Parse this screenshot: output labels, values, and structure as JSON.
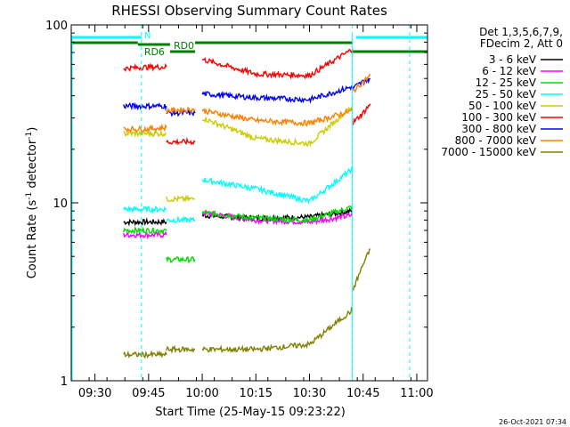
{
  "chart_data": {
    "type": "line",
    "title": "RHESSI Observing Summary Count Rates",
    "xlabel": "Start Time (25-May-15 09:23:22)",
    "ylabel_main": "Count Rate (s",
    "ylabel_sup1": "-1",
    "ylabel_mid": " detector",
    "ylabel_sup2": "-1",
    "ylabel_end": ")",
    "y_scale": "log",
    "ylim": [
      1,
      100
    ],
    "xlim": [
      "09:23:22",
      "11:03:00"
    ],
    "x_ticks": [
      "09:30",
      "09:45",
      "10:00",
      "10:15",
      "10:30",
      "10:45",
      "11:00"
    ],
    "y_ticks": [
      "1",
      "10",
      "100"
    ],
    "legend_header": [
      "Det 1,3,5,6,7,9,",
      "FDecim 2, Att 0"
    ],
    "legend_position": "top-right",
    "series": [
      {
        "name": "3 - 6 keV",
        "color": "#000000",
        "segments": [
          {
            "t": [
              "09:38",
              "09:45",
              "09:50"
            ],
            "v": [
              7.8,
              7.8,
              7.8
            ]
          },
          {
            "t": [
              "10:00",
              "10:15",
              "10:30",
              "10:42"
            ],
            "v": [
              8.5,
              8.2,
              8.3,
              9.0
            ]
          }
        ]
      },
      {
        "name": "6 - 12 keV",
        "color": "#ff00ff",
        "segments": [
          {
            "t": [
              "09:38",
              "09:45",
              "09:50"
            ],
            "v": [
              6.6,
              6.6,
              6.6
            ]
          },
          {
            "t": [
              "10:00",
              "10:15",
              "10:30",
              "10:42"
            ],
            "v": [
              8.8,
              8.0,
              7.8,
              8.5
            ]
          }
        ]
      },
      {
        "name": "12 - 25 keV",
        "color": "#00dd00",
        "segments": [
          {
            "t": [
              "09:38",
              "09:45",
              "09:50"
            ],
            "v": [
              7.0,
              7.0,
              7.0
            ]
          },
          {
            "t": [
              "09:50",
              "09:58"
            ],
            "v": [
              4.8,
              4.8
            ]
          },
          {
            "t": [
              "10:00",
              "10:15",
              "10:30",
              "10:42"
            ],
            "v": [
              8.8,
              8.2,
              8.0,
              9.5
            ]
          }
        ]
      },
      {
        "name": "25 - 50 keV",
        "color": "#00ffff",
        "segments": [
          {
            "t": [
              "09:38",
              "09:45",
              "09:50"
            ],
            "v": [
              9.2,
              9.2,
              9.2
            ]
          },
          {
            "t": [
              "09:50",
              "09:58"
            ],
            "v": [
              8.0,
              8.0
            ]
          },
          {
            "t": [
              "10:00",
              "10:15",
              "10:30",
              "10:42"
            ],
            "v": [
              13.5,
              12.0,
              10.2,
              15.5
            ]
          }
        ]
      },
      {
        "name": "50 - 100 keV",
        "color": "#cccc00",
        "segments": [
          {
            "t": [
              "09:38",
              "09:45",
              "09:50"
            ],
            "v": [
              24.5,
              24.5,
              24.5
            ]
          },
          {
            "t": [
              "09:50",
              "09:58"
            ],
            "v": [
              10.5,
              10.5
            ]
          },
          {
            "t": [
              "10:00",
              "10:15",
              "10:30",
              "10:42"
            ],
            "v": [
              30.0,
              23.0,
              21.5,
              35.0
            ]
          }
        ]
      },
      {
        "name": "100 - 300 keV",
        "color": "#ff0000",
        "segments": [
          {
            "t": [
              "09:38",
              "09:45",
              "09:50"
            ],
            "v": [
              57.0,
              58.0,
              58.0
            ]
          },
          {
            "t": [
              "09:50",
              "09:58"
            ],
            "v": [
              22.0,
              22.0
            ]
          },
          {
            "t": [
              "10:00",
              "10:15",
              "10:30",
              "10:42"
            ],
            "v": [
              64.0,
              53.0,
              52.0,
              73.0
            ]
          },
          {
            "t": [
              "10:42",
              "10:45",
              "10:47"
            ],
            "v": [
              28.0,
              32.0,
              36.0
            ]
          }
        ]
      },
      {
        "name": "300 - 800 keV",
        "color": "#0000ff",
        "segments": [
          {
            "t": [
              "09:38",
              "09:45",
              "09:50"
            ],
            "v": [
              35.0,
              35.0,
              35.0
            ]
          },
          {
            "t": [
              "09:50",
              "09:58"
            ],
            "v": [
              32.0,
              32.0
            ]
          },
          {
            "t": [
              "10:00",
              "10:15",
              "10:30",
              "10:42"
            ],
            "v": [
              41.0,
              39.0,
              38.0,
              45.0
            ]
          },
          {
            "t": [
              "10:42",
              "10:45",
              "10:47"
            ],
            "v": [
              44.0,
              48.0,
              50.0
            ]
          }
        ]
      },
      {
        "name": "800 - 7000 keV",
        "color": "#ff8000",
        "segments": [
          {
            "t": [
              "09:38",
              "09:45",
              "09:50"
            ],
            "v": [
              26.0,
              26.0,
              26.5
            ]
          },
          {
            "t": [
              "09:50",
              "09:58"
            ],
            "v": [
              33.0,
              33.5
            ]
          },
          {
            "t": [
              "10:00",
              "10:15",
              "10:30",
              "10:42"
            ],
            "v": [
              33.0,
              29.0,
              28.0,
              33.0
            ]
          },
          {
            "t": [
              "10:42",
              "10:45",
              "10:47"
            ],
            "v": [
              42.0,
              48.0,
              52.0
            ]
          }
        ]
      },
      {
        "name": "7000 - 15000 keV",
        "color": "#808000",
        "segments": [
          {
            "t": [
              "09:38",
              "09:45",
              "09:50"
            ],
            "v": [
              1.4,
              1.4,
              1.4
            ]
          },
          {
            "t": [
              "09:50",
              "09:58"
            ],
            "v": [
              1.5,
              1.5
            ]
          },
          {
            "t": [
              "10:00",
              "10:15",
              "10:30",
              "10:42"
            ],
            "v": [
              1.5,
              1.5,
              1.6,
              2.5
            ]
          },
          {
            "t": [
              "10:42",
              "10:45",
              "10:47"
            ],
            "v": [
              3.2,
              4.5,
              5.5
            ]
          }
        ]
      }
    ],
    "annotations": {
      "saa_night_bar_color": "#00ffff",
      "saa_night_label": "N",
      "decimation_bar_color": "#008000",
      "decimation_labels": [
        "RD6",
        "RD0"
      ]
    },
    "footer_date": "26-Oct-2021 07:34"
  }
}
